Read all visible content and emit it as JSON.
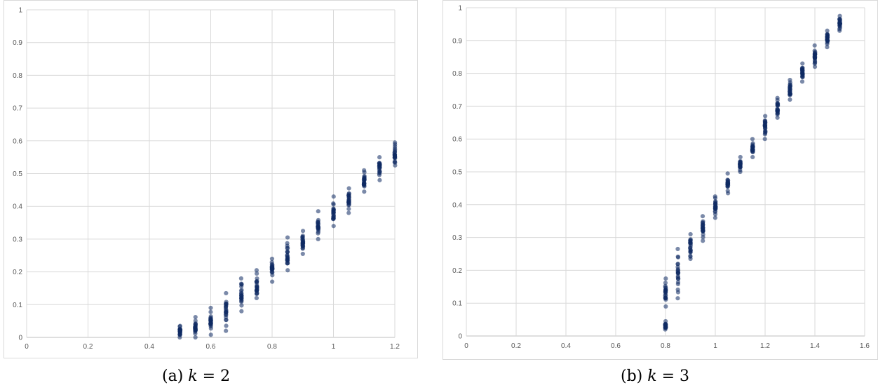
{
  "chart_data": [
    {
      "type": "scatter",
      "caption": {
        "prefix": "(a)",
        "variable": "k",
        "equals": "=",
        "value": "2"
      },
      "xlim": [
        0,
        1.2
      ],
      "ylim": [
        0,
        1
      ],
      "x_ticks": [
        "0",
        "0.2",
        "0.4",
        "0.6",
        "0.8",
        "1",
        "1.2"
      ],
      "y_ticks": [
        "0",
        "0.1",
        "0.2",
        "0.3",
        "0.4",
        "0.5",
        "0.6",
        "0.7",
        "0.8",
        "0.9",
        "1"
      ],
      "grid": true,
      "marker_color": "#0f2a63",
      "clusters": [
        {
          "x": 0.5,
          "y_min": 0.0,
          "y_max": 0.035
        },
        {
          "x": 0.55,
          "y_min": 0.0,
          "y_max": 0.062
        },
        {
          "x": 0.6,
          "y_min": 0.008,
          "y_max": 0.09
        },
        {
          "x": 0.65,
          "y_min": 0.02,
          "y_max": 0.135
        },
        {
          "x": 0.7,
          "y_min": 0.08,
          "y_max": 0.18
        },
        {
          "x": 0.75,
          "y_min": 0.12,
          "y_max": 0.205
        },
        {
          "x": 0.8,
          "y_min": 0.17,
          "y_max": 0.24
        },
        {
          "x": 0.85,
          "y_min": 0.205,
          "y_max": 0.305
        },
        {
          "x": 0.9,
          "y_min": 0.255,
          "y_max": 0.325
        },
        {
          "x": 0.95,
          "y_min": 0.3,
          "y_max": 0.385
        },
        {
          "x": 1.0,
          "y_min": 0.34,
          "y_max": 0.43
        },
        {
          "x": 1.05,
          "y_min": 0.38,
          "y_max": 0.455
        },
        {
          "x": 1.1,
          "y_min": 0.445,
          "y_max": 0.51
        },
        {
          "x": 1.15,
          "y_min": 0.48,
          "y_max": 0.55
        },
        {
          "x": 1.2,
          "y_min": 0.525,
          "y_max": 0.595
        }
      ]
    },
    {
      "type": "scatter",
      "caption": {
        "prefix": "(b)",
        "variable": "k",
        "equals": "=",
        "value": "3"
      },
      "xlim": [
        0,
        1.6
      ],
      "ylim": [
        0,
        1
      ],
      "x_ticks": [
        "0",
        "0.2",
        "0.4",
        "0.6",
        "0.8",
        "1",
        "1.2",
        "1.4",
        "1.6"
      ],
      "y_ticks": [
        "0",
        "0.1",
        "0.2",
        "0.3",
        "0.4",
        "0.5",
        "0.6",
        "0.7",
        "0.8",
        "0.9",
        "1"
      ],
      "grid": true,
      "marker_color": "#0f2a63",
      "clusters": [
        {
          "x": 0.8,
          "y_min": 0.02,
          "y_max": 0.045
        },
        {
          "x": 0.8,
          "y_min": 0.09,
          "y_max": 0.175
        },
        {
          "x": 0.85,
          "y_min": 0.115,
          "y_max": 0.265
        },
        {
          "x": 0.9,
          "y_min": 0.235,
          "y_max": 0.31
        },
        {
          "x": 0.95,
          "y_min": 0.29,
          "y_max": 0.365
        },
        {
          "x": 1.0,
          "y_min": 0.36,
          "y_max": 0.425
        },
        {
          "x": 1.05,
          "y_min": 0.435,
          "y_max": 0.495
        },
        {
          "x": 1.1,
          "y_min": 0.5,
          "y_max": 0.545
        },
        {
          "x": 1.15,
          "y_min": 0.545,
          "y_max": 0.6
        },
        {
          "x": 1.2,
          "y_min": 0.6,
          "y_max": 0.67
        },
        {
          "x": 1.25,
          "y_min": 0.665,
          "y_max": 0.725
        },
        {
          "x": 1.3,
          "y_min": 0.72,
          "y_max": 0.78
        },
        {
          "x": 1.35,
          "y_min": 0.775,
          "y_max": 0.83
        },
        {
          "x": 1.4,
          "y_min": 0.82,
          "y_max": 0.885
        },
        {
          "x": 1.45,
          "y_min": 0.88,
          "y_max": 0.93
        },
        {
          "x": 1.5,
          "y_min": 0.93,
          "y_max": 0.975
        }
      ]
    }
  ]
}
